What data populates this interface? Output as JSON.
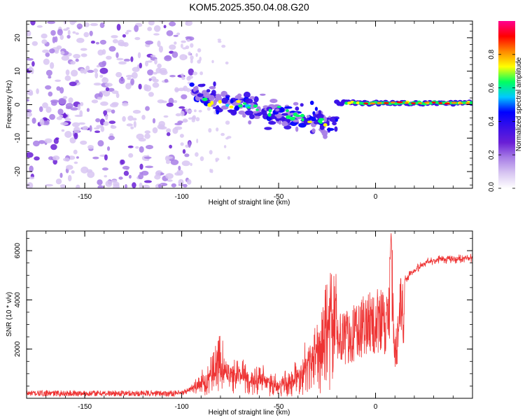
{
  "title": "KOM5.2025.350.04.08.G20",
  "chart_data": [
    {
      "type": "heatmap",
      "xlabel": "Height of straight line (km)",
      "ylabel": "Frequency (Hz)",
      "xlim": [
        -180,
        50
      ],
      "ylim": [
        -25,
        25
      ],
      "xticks": [
        -150,
        -100,
        -50,
        0
      ],
      "yticks": [
        -20,
        -10,
        0,
        10,
        20
      ],
      "colorbar": {
        "label": "Normalized spectral amplitude",
        "range": [
          0,
          1
        ],
        "ticks": [
          "0.0",
          "0.2",
          "0.4",
          "0.6",
          "0.8"
        ],
        "colormap": [
          "#ffffff",
          "#d8c6f2",
          "#a87ee6",
          "#6a1fd6",
          "#3a10e8",
          "#0000ff",
          "#00c8ff",
          "#00ff60",
          "#ffff00",
          "#ff8800",
          "#ff0000",
          "#ff0090"
        ]
      },
      "features": {
        "scatter_region": {
          "x": [
            -180,
            -95
          ],
          "y": [
            -25,
            25
          ],
          "amplitude": 0.1
        },
        "descending_band": {
          "x": [
            -95,
            -20
          ],
          "y_center": [
            3,
            -6
          ],
          "amplitude": 0.3
        },
        "signal_line": {
          "x": [
            -20,
            50
          ],
          "y": [
            0,
            1
          ],
          "amplitude": 0.9
        }
      }
    },
    {
      "type": "line",
      "series_color": "#ee3333",
      "xlabel": "Height of straight line (km)",
      "ylabel": "SNR (10 * v/v)",
      "xlim": [
        -180,
        50
      ],
      "ylim": [
        0,
        6800
      ],
      "xticks": [
        -150,
        -100,
        -50,
        0
      ],
      "yticks": [
        2000,
        4000,
        6000
      ],
      "series": [
        {
          "name": "SNR",
          "x": [
            -180,
            -150,
            -120,
            -100,
            -92,
            -85,
            -80,
            -75,
            -70,
            -65,
            -60,
            -55,
            -50,
            -45,
            -40,
            -35,
            -30,
            -25,
            -20,
            -15,
            -10,
            -8,
            -5,
            0,
            3,
            5,
            7,
            8,
            10,
            13,
            15,
            20,
            25,
            30,
            40,
            50
          ],
          "y": [
            200,
            200,
            200,
            200,
            500,
            900,
            1400,
            1000,
            900,
            700,
            800,
            600,
            500,
            700,
            900,
            1400,
            1800,
            2600,
            3000,
            3000,
            3300,
            3400,
            3700,
            3800,
            3800,
            3900,
            4200,
            6800,
            2200,
            4300,
            4800,
            5200,
            5500,
            5600,
            5650,
            5700
          ]
        }
      ]
    }
  ]
}
